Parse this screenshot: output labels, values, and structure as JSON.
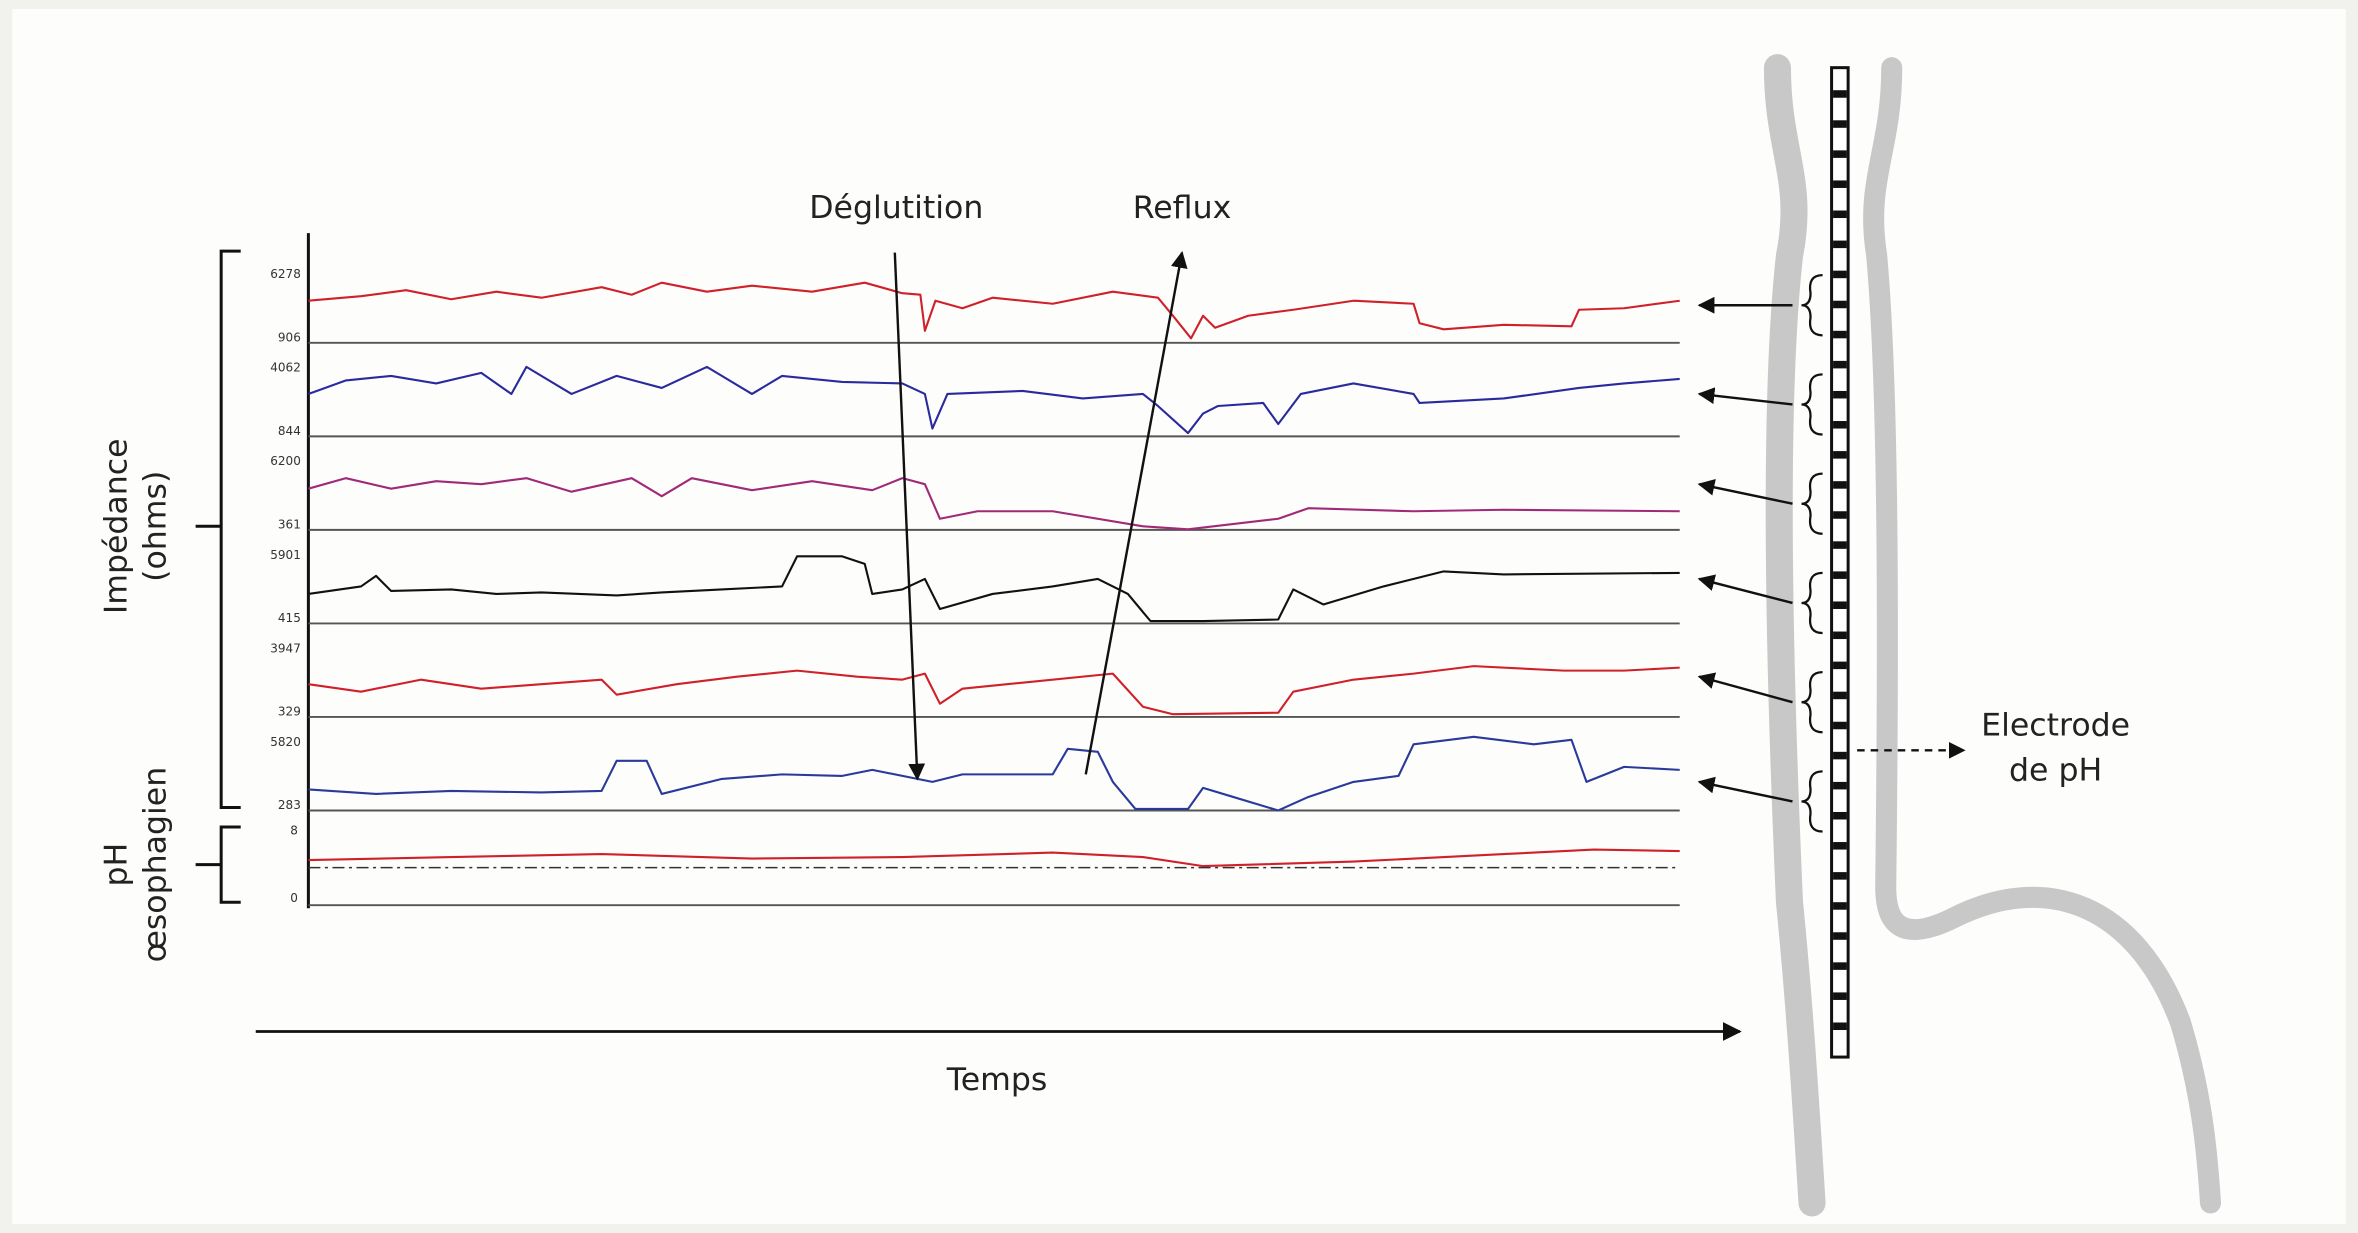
{
  "labels": {
    "deglutition": "Déglutition",
    "reflux": "Reflux",
    "impedance": "Impédance",
    "impedance_unit": "(ohms)",
    "ph": "pH",
    "ph_sub": "œsophagien",
    "time": "Temps",
    "electrode": "Electrode",
    "electrode_sub": "de pH"
  },
  "channels": [
    {
      "max": "6278",
      "min": "906"
    },
    {
      "max": "4062",
      "min": "844"
    },
    {
      "max": "6200",
      "min": "361"
    },
    {
      "max": "5901",
      "min": "415"
    },
    {
      "max": "3947",
      "min": "329"
    },
    {
      "max": "5820",
      "min": "283"
    }
  ],
  "ph_scale": {
    "max": "8",
    "min": "0"
  }
}
